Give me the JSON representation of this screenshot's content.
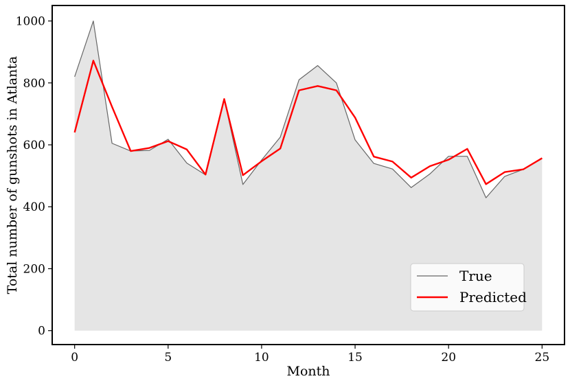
{
  "chart_data": {
    "type": "line",
    "xlabel": "Month",
    "ylabel": "Total number of gunshots in Atlanta",
    "xlim": [
      -1.2,
      26.2
    ],
    "ylim": [
      -45,
      1050
    ],
    "xticks": [
      0,
      5,
      10,
      15,
      20,
      25
    ],
    "yticks": [
      0,
      200,
      400,
      600,
      800,
      1000
    ],
    "grid": false,
    "legend_position": "lower-right",
    "x": [
      0,
      1,
      2,
      3,
      4,
      5,
      6,
      7,
      8,
      9,
      10,
      11,
      12,
      13,
      14,
      15,
      16,
      17,
      18,
      19,
      20,
      21,
      22,
      23,
      24,
      25
    ],
    "series": [
      {
        "name": "True",
        "color": "#666666",
        "fill": "#e5e5e5",
        "values": [
          820,
          1000,
          605,
          580,
          582,
          618,
          541,
          503,
          748,
          472,
          551,
          625,
          810,
          856,
          800,
          616,
          540,
          522,
          462,
          506,
          563,
          563,
          429,
          498,
          521,
          557
        ]
      },
      {
        "name": "Predicted",
        "color": "#ff0000",
        "values": [
          640,
          872,
          723,
          580,
          590,
          612,
          585,
          504,
          748,
          502,
          547,
          588,
          776,
          790,
          776,
          688,
          562,
          546,
          494,
          531,
          552,
          587,
          473,
          512,
          521,
          557
        ]
      }
    ]
  }
}
